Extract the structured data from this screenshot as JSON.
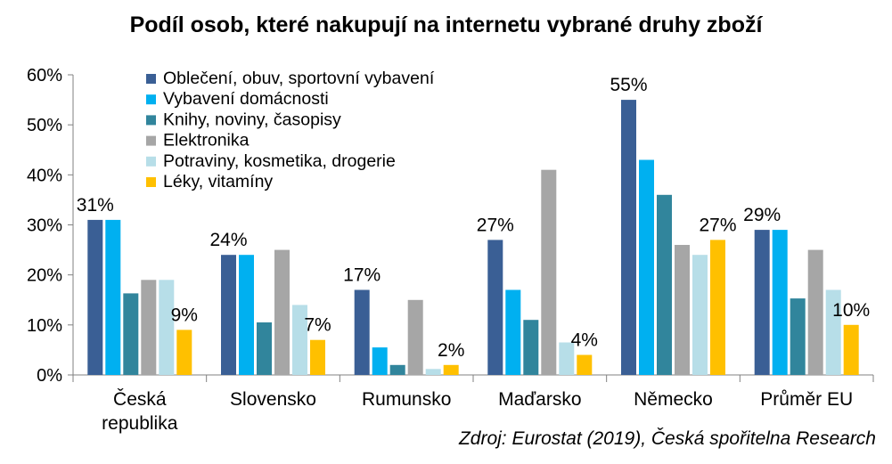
{
  "chart_data": {
    "type": "bar",
    "title": "Podíl osob, které nakupují na internetu vybrané druhy zboží",
    "categories": [
      "Česká republika",
      "Slovensko",
      "Rumunsko",
      "Maďarsko",
      "Německo",
      "Průměr EU"
    ],
    "category_lines": [
      [
        "Česká",
        "republika"
      ],
      [
        "Slovensko"
      ],
      [
        "Rumunsko"
      ],
      [
        "Maďarsko"
      ],
      [
        "Německo"
      ],
      [
        "Průměr EU"
      ]
    ],
    "series": [
      {
        "name": "Oblečení, obuv, sportovní vybavení",
        "color": "#3A5F95",
        "values": [
          31,
          24,
          17,
          27,
          55,
          29
        ]
      },
      {
        "name": "Vybavení domácnosti",
        "color": "#00B0F0",
        "values": [
          31,
          24,
          5.5,
          17,
          43,
          29
        ]
      },
      {
        "name": "Knihy, noviny, časopisy",
        "color": "#31859C",
        "values": [
          16.3,
          10.5,
          2,
          11,
          36,
          15.3
        ]
      },
      {
        "name": "Elektronika",
        "color": "#A6A6A6",
        "values": [
          19,
          25,
          15,
          41,
          26,
          25
        ]
      },
      {
        "name": "Potraviny, kosmetika, drogerie",
        "color": "#B7DEE8",
        "values": [
          19,
          14,
          1.2,
          6.5,
          24,
          17
        ]
      },
      {
        "name": "Léky, vitamíny",
        "color": "#FFC000",
        "values": [
          9,
          7,
          2,
          4,
          27,
          10
        ]
      }
    ],
    "data_labels": [
      {
        "series": 0,
        "category": 0,
        "text": "31%"
      },
      {
        "series": 5,
        "category": 0,
        "text": "9%"
      },
      {
        "series": 0,
        "category": 1,
        "text": "24%"
      },
      {
        "series": 5,
        "category": 1,
        "text": "7%"
      },
      {
        "series": 0,
        "category": 2,
        "text": "17%"
      },
      {
        "series": 5,
        "category": 2,
        "text": "2%"
      },
      {
        "series": 0,
        "category": 3,
        "text": "27%"
      },
      {
        "series": 5,
        "category": 3,
        "text": "4%"
      },
      {
        "series": 0,
        "category": 4,
        "text": "55%"
      },
      {
        "series": 5,
        "category": 4,
        "text": "27%"
      },
      {
        "series": 0,
        "category": 5,
        "text": "29%"
      },
      {
        "series": 5,
        "category": 5,
        "text": "10%"
      }
    ],
    "yticks": [
      "0%",
      "10%",
      "20%",
      "30%",
      "40%",
      "50%",
      "60%"
    ],
    "ylim": [
      0,
      60
    ],
    "legend_position": "top-left",
    "grid": false
  },
  "source_note": "Zdroj: Eurostat (2019), Česká spořitelna Research"
}
